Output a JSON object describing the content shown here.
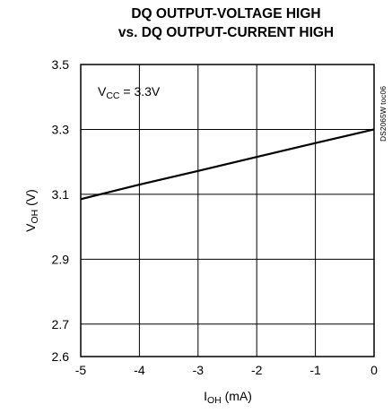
{
  "chart_data": {
    "type": "line",
    "title_line1": "DQ OUTPUT-VOLTAGE HIGH",
    "title_line2": "vs. DQ OUTPUT-CURRENT HIGH",
    "xlabel_main": "I",
    "xlabel_sub": "OH",
    "xlabel_unit": " (mA)",
    "ylabel_main": "V",
    "ylabel_sub": "OH",
    "ylabel_unit": " (V)",
    "annotation_main": "V",
    "annotation_sub": "CC",
    "annotation_rest": " = 3.3V",
    "doc_id": "DS2065W toc06",
    "xlim": [
      -5,
      0
    ],
    "ylim": [
      2.6,
      3.5
    ],
    "x_ticks": [
      -5,
      -4,
      -3,
      -2,
      -1,
      0
    ],
    "x_tick_labels": [
      "-5",
      "-4",
      "-3",
      "-2",
      "-1",
      "0"
    ],
    "y_ticks": [
      3.5,
      3.3,
      3.1,
      2.9,
      2.7,
      2.6
    ],
    "y_tick_labels": [
      "3.5",
      "3.3",
      "3.1",
      "2.9",
      "2.7",
      "2.6"
    ],
    "grid": true,
    "series": [
      {
        "x": [
          -5,
          -4,
          -3,
          -2,
          -1,
          0
        ],
        "y": [
          3.085,
          3.13,
          3.172,
          3.215,
          3.258,
          3.3
        ]
      }
    ]
  }
}
